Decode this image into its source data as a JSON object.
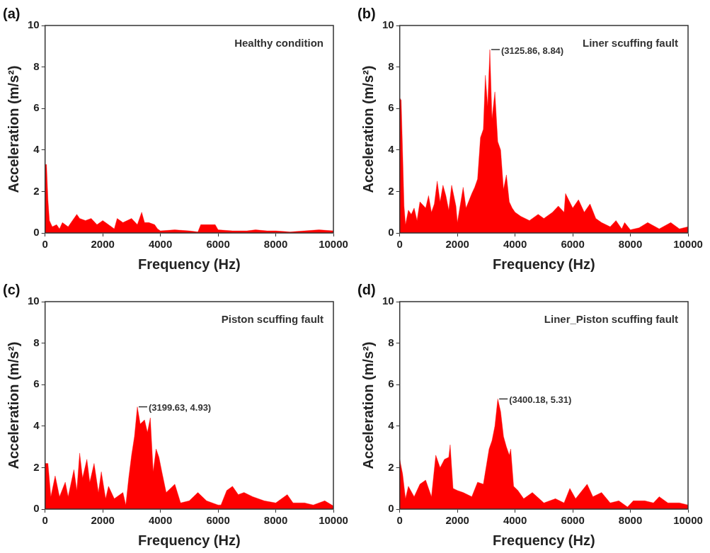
{
  "chart_data": [
    {
      "type": "area",
      "title": "(a)",
      "xlabel": "Frequency (Hz)",
      "ylabel": "Acceleration (m/s²)",
      "color": "#ff0000",
      "grid": false,
      "xlim": [
        0,
        10000
      ],
      "ylim": [
        0,
        10
      ],
      "xticks": [
        0,
        2000,
        4000,
        6000,
        8000,
        10000
      ],
      "yticks": [
        0,
        2,
        4,
        6,
        8,
        10
      ],
      "annotations": [
        "Healthy condition"
      ],
      "x": [
        0,
        50,
        100,
        150,
        250,
        400,
        500,
        600,
        800,
        1000,
        1100,
        1200,
        1400,
        1600,
        1800,
        2000,
        2200,
        2400,
        2500,
        2700,
        3000,
        3200,
        3350,
        3450,
        3600,
        3800,
        3900,
        4000,
        4500,
        5000,
        5300,
        5400,
        5700,
        5900,
        6000,
        6500,
        7000,
        7300,
        7700,
        8000,
        8500,
        9000,
        9500,
        10000
      ],
      "values": [
        3.3,
        3.3,
        1.6,
        0.6,
        0.3,
        0.4,
        0.2,
        0.5,
        0.3,
        0.7,
        0.9,
        0.7,
        0.6,
        0.7,
        0.4,
        0.6,
        0.4,
        0.2,
        0.7,
        0.5,
        0.7,
        0.4,
        1.0,
        0.5,
        0.5,
        0.4,
        0.2,
        0.1,
        0.15,
        0.1,
        0.05,
        0.4,
        0.4,
        0.4,
        0.15,
        0.1,
        0.1,
        0.15,
        0.1,
        0.1,
        0.05,
        0.1,
        0.15,
        0.1
      ]
    },
    {
      "type": "area",
      "title": "(b)",
      "xlabel": "Frequency (Hz)",
      "ylabel": "Acceleration (m/s²)",
      "color": "#ff0000",
      "grid": false,
      "xlim": [
        0,
        10000
      ],
      "ylim": [
        0,
        10
      ],
      "xticks": [
        0,
        2000,
        4000,
        6000,
        8000,
        10000
      ],
      "yticks": [
        0,
        2,
        4,
        6,
        8,
        10
      ],
      "annotations": [
        "Liner scuffing fault",
        {
          "text": "(3125.86, 8.84)",
          "x": 3125.86,
          "y": 8.84
        }
      ],
      "x": [
        0,
        50,
        100,
        150,
        200,
        300,
        400,
        500,
        600,
        700,
        900,
        1000,
        1100,
        1200,
        1300,
        1400,
        1500,
        1600,
        1700,
        1800,
        1950,
        2000,
        2200,
        2300,
        2500,
        2600,
        2700,
        2800,
        2900,
        2970,
        3050,
        3125.86,
        3200,
        3300,
        3400,
        3500,
        3600,
        3700,
        3800,
        3900,
        4000,
        4200,
        4500,
        4800,
        5000,
        5300,
        5500,
        5700,
        5750,
        6000,
        6200,
        6400,
        6600,
        6800,
        7000,
        7300,
        7500,
        7700,
        7800,
        8000,
        8300,
        8600,
        9000,
        9400,
        9700,
        10000
      ],
      "values": [
        6.5,
        6.4,
        3.9,
        1.3,
        0.4,
        1.1,
        0.9,
        1.2,
        0.6,
        1.5,
        1.2,
        1.8,
        1.0,
        1.4,
        2.5,
        1.5,
        2.3,
        1.8,
        1.1,
        2.3,
        1.3,
        0.5,
        2.2,
        1.2,
        1.9,
        2.2,
        2.6,
        4.6,
        5.0,
        7.6,
        6.1,
        8.84,
        5.5,
        6.8,
        4.4,
        4.0,
        2.1,
        2.8,
        1.5,
        1.2,
        1.0,
        0.8,
        0.6,
        0.9,
        0.7,
        1.0,
        1.3,
        1.0,
        1.9,
        1.2,
        1.6,
        1.0,
        1.4,
        0.7,
        0.5,
        0.3,
        0.6,
        0.2,
        0.5,
        0.15,
        0.25,
        0.5,
        0.2,
        0.5,
        0.2,
        0.3
      ]
    },
    {
      "type": "area",
      "title": "(c)",
      "xlabel": "Frequency (Hz)",
      "ylabel": "Acceleration (m/s²)",
      "color": "#ff0000",
      "grid": false,
      "xlim": [
        0,
        10000
      ],
      "ylim": [
        0,
        10
      ],
      "xticks": [
        0,
        2000,
        4000,
        6000,
        8000,
        10000
      ],
      "yticks": [
        0,
        2,
        4,
        6,
        8,
        10
      ],
      "annotations": [
        "Piston scuffing fault",
        {
          "text": "(3199.63, 4.93)",
          "x": 3199.63,
          "y": 4.93
        }
      ],
      "x": [
        0,
        100,
        200,
        350,
        500,
        700,
        800,
        1000,
        1100,
        1200,
        1300,
        1450,
        1550,
        1700,
        1850,
        1950,
        2100,
        2200,
        2400,
        2700,
        2800,
        2900,
        3000,
        3100,
        3199.63,
        3300,
        3450,
        3550,
        3650,
        3750,
        3850,
        3950,
        4050,
        4200,
        4350,
        4500,
        4700,
        5000,
        5300,
        5600,
        6000,
        6100,
        6300,
        6500,
        6700,
        6900,
        7200,
        7600,
        8000,
        8400,
        8600,
        9000,
        9300,
        9700,
        10000
      ],
      "values": [
        2.2,
        2.2,
        0.6,
        1.6,
        0.6,
        1.3,
        0.6,
        1.9,
        0.9,
        2.7,
        1.5,
        2.4,
        1.3,
        2.2,
        0.8,
        1.8,
        0.5,
        1.1,
        0.5,
        0.8,
        0.2,
        1.5,
        2.6,
        3.5,
        4.93,
        4.1,
        4.3,
        3.7,
        4.4,
        1.8,
        2.9,
        2.5,
        1.8,
        0.8,
        1.0,
        1.2,
        0.3,
        0.4,
        0.8,
        0.4,
        0.2,
        0.2,
        0.9,
        1.1,
        0.7,
        0.8,
        0.6,
        0.4,
        0.3,
        0.7,
        0.3,
        0.3,
        0.2,
        0.4,
        0.15
      ]
    },
    {
      "type": "area",
      "title": "(d)",
      "xlabel": "Frequency (Hz)",
      "ylabel": "Acceleration (m/s²)",
      "color": "#ff0000",
      "grid": false,
      "xlim": [
        0,
        10000
      ],
      "ylim": [
        0,
        10
      ],
      "xticks": [
        0,
        2000,
        4000,
        6000,
        8000,
        10000
      ],
      "yticks": [
        0,
        2,
        4,
        6,
        8,
        10
      ],
      "annotations": [
        "Liner_Piston scuffing fault",
        {
          "text": "(3400.18, 5.31)",
          "x": 3400.18,
          "y": 5.31
        }
      ],
      "x": [
        0,
        100,
        200,
        300,
        500,
        700,
        900,
        1100,
        1250,
        1400,
        1550,
        1700,
        1750,
        1850,
        2000,
        2200,
        2500,
        2700,
        2900,
        3100,
        3200,
        3300,
        3400.18,
        3500,
        3600,
        3700,
        3800,
        3850,
        3950,
        4100,
        4300,
        4600,
        5000,
        5400,
        5700,
        5900,
        6100,
        6500,
        6700,
        7000,
        7300,
        7600,
        7900,
        8100,
        8500,
        8800,
        9000,
        9300,
        9700,
        10000
      ],
      "values": [
        2.4,
        1.7,
        0.5,
        1.1,
        0.6,
        1.2,
        1.4,
        0.6,
        2.6,
        2.0,
        2.4,
        2.5,
        3.1,
        1.0,
        0.9,
        0.8,
        0.6,
        1.3,
        1.2,
        2.9,
        3.3,
        4.0,
        5.31,
        4.7,
        3.5,
        3.0,
        2.6,
        2.9,
        1.1,
        0.9,
        0.5,
        0.8,
        0.3,
        0.5,
        0.3,
        1.0,
        0.5,
        1.2,
        0.6,
        0.8,
        0.3,
        0.4,
        0.1,
        0.4,
        0.4,
        0.3,
        0.6,
        0.3,
        0.3,
        0.2
      ]
    }
  ]
}
